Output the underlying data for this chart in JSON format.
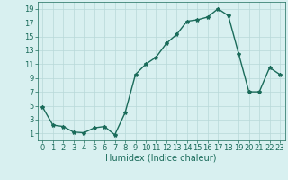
{
  "x": [
    0,
    1,
    2,
    3,
    4,
    5,
    6,
    7,
    8,
    9,
    10,
    11,
    12,
    13,
    14,
    15,
    16,
    17,
    18,
    19,
    20,
    21,
    22,
    23
  ],
  "y": [
    4.8,
    2.2,
    2.0,
    1.2,
    1.1,
    1.8,
    2.0,
    0.8,
    4.0,
    9.5,
    11.0,
    12.0,
    14.0,
    15.3,
    17.2,
    17.4,
    17.8,
    19.0,
    18.0,
    12.5,
    7.0,
    7.0,
    10.5,
    9.5
  ],
  "line_color": "#1a6b5a",
  "marker": "*",
  "marker_size": 3,
  "xlabel": "Humidex (Indice chaleur)",
  "xlim": [
    -0.5,
    23.5
  ],
  "ylim": [
    0,
    20
  ],
  "yticks": [
    1,
    3,
    5,
    7,
    9,
    11,
    13,
    15,
    17,
    19
  ],
  "xticks": [
    0,
    1,
    2,
    3,
    4,
    5,
    6,
    7,
    8,
    9,
    10,
    11,
    12,
    13,
    14,
    15,
    16,
    17,
    18,
    19,
    20,
    21,
    22,
    23
  ],
  "bg_color": "#d8f0f0",
  "grid_color": "#b8d8d8",
  "line_width": 1.0,
  "xlabel_fontsize": 7,
  "tick_fontsize": 6
}
